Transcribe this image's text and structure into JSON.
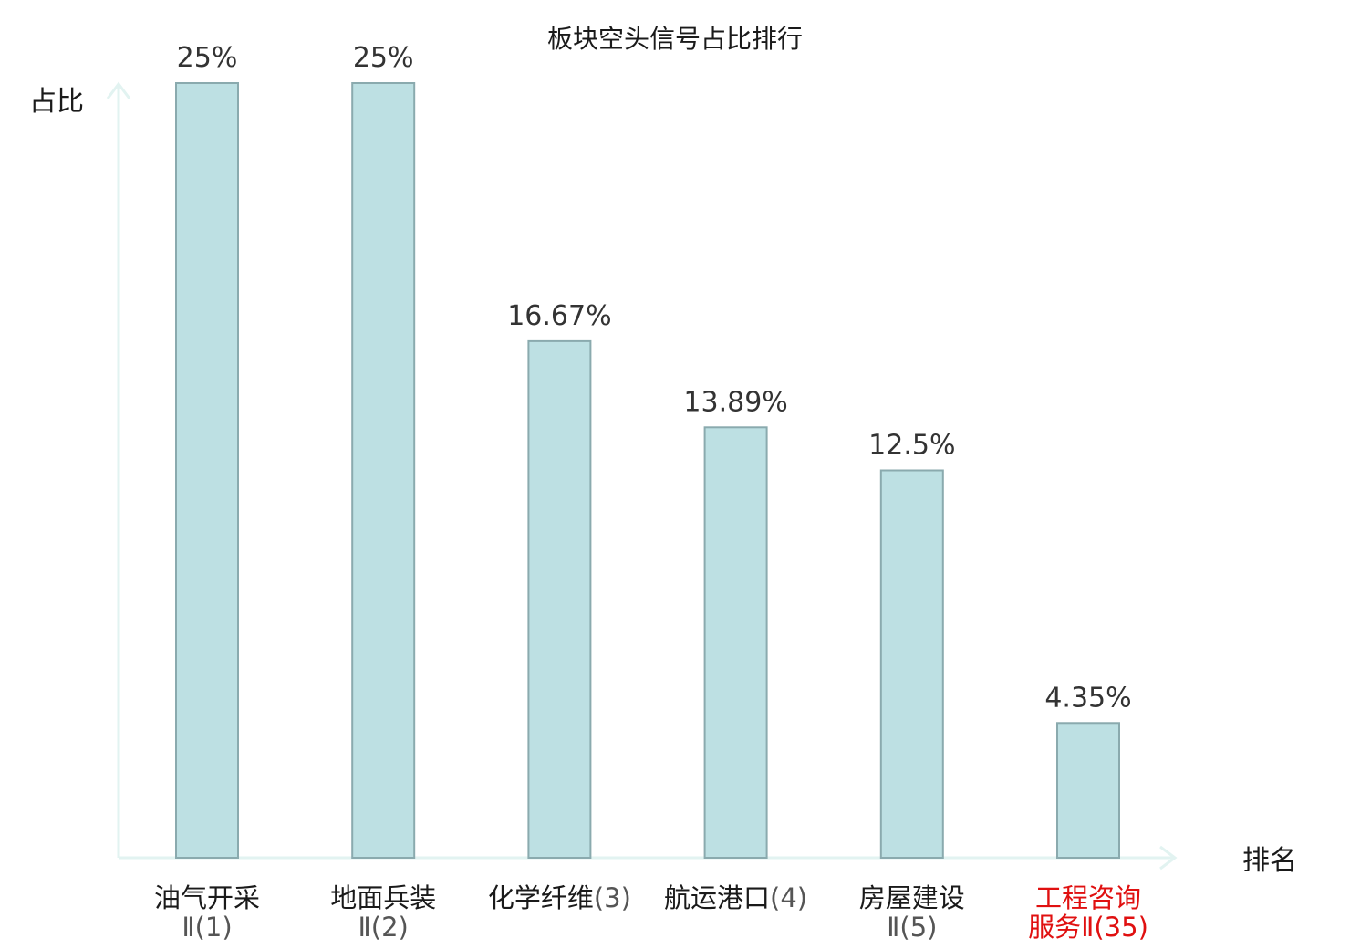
{
  "colors": {
    "bar_fill": "#bde0e3",
    "bar_stroke": "#8aaaae",
    "axis": "#e2f3f1",
    "text": "#1a1a1a",
    "value_text": "#333333",
    "highlight": "#e01010",
    "category_suffix": "#555555"
  },
  "chart_data": {
    "type": "bar",
    "title": "板块空头信号占比排行",
    "xlabel": "排名",
    "ylabel": "占比",
    "ylim": [
      0,
      25
    ],
    "grid": false,
    "legend": "none",
    "categories": [
      {
        "line1": "油气开采",
        "line2_main": "",
        "line2_suffix": "Ⅱ(1)",
        "highlight": false
      },
      {
        "line1": "地面兵装",
        "line2_main": "",
        "line2_suffix": "Ⅱ(2)",
        "highlight": false
      },
      {
        "line1": "化学纤维",
        "line1_suffix": "(3)",
        "line2_main": "",
        "line2_suffix": "",
        "highlight": false
      },
      {
        "line1": "航运港口",
        "line1_suffix": "(4)",
        "line2_main": "",
        "line2_suffix": "",
        "highlight": false
      },
      {
        "line1": "房屋建设",
        "line2_main": "",
        "line2_suffix": "Ⅱ(5)",
        "highlight": false
      },
      {
        "line1": "工程咨询",
        "line2_main": "服务",
        "line2_suffix": "Ⅱ(35)",
        "highlight": true
      }
    ],
    "values": [
      25,
      25,
      16.67,
      13.89,
      12.5,
      4.35
    ],
    "value_labels": [
      "25%",
      "25%",
      "16.67%",
      "13.89%",
      "12.5%",
      "4.35%"
    ]
  }
}
